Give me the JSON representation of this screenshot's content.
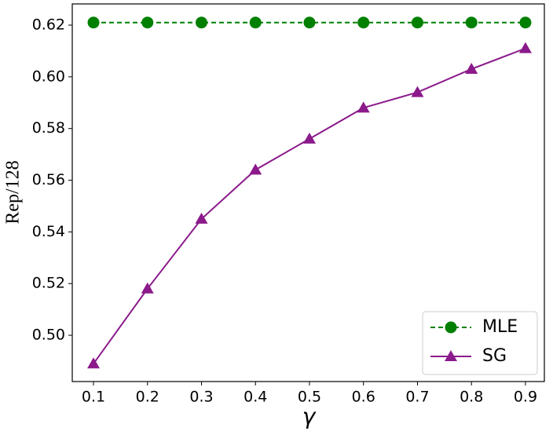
{
  "chart_data": {
    "type": "line",
    "x_label": "γ",
    "y_label": "Rep/128",
    "x": [
      0.1,
      0.2,
      0.3,
      0.4,
      0.5,
      0.6,
      0.7,
      0.8,
      0.9
    ],
    "series": [
      {
        "name": "MLE",
        "color": "#008000",
        "marker": "circle",
        "dash": true,
        "values": [
          0.621,
          0.621,
          0.621,
          0.621,
          0.621,
          0.621,
          0.621,
          0.621,
          0.621
        ]
      },
      {
        "name": "SG",
        "color": "#8b1a8b",
        "marker": "triangle",
        "dash": false,
        "values": [
          0.489,
          0.518,
          0.545,
          0.564,
          0.576,
          0.588,
          0.594,
          0.603,
          0.611
        ]
      }
    ],
    "xlim": [
      0.0607,
      0.935
    ],
    "xticks": [
      0.1,
      0.2,
      0.3,
      0.4,
      0.5,
      0.6,
      0.7,
      0.8,
      0.9
    ],
    "ylim": [
      0.4821,
      0.6282
    ],
    "yticks": [
      {
        "value": 0.5,
        "label": "0.50"
      },
      0.52,
      0.54,
      0.56,
      0.58,
      {
        "value": 0.6,
        "label": "0.60"
      },
      0.62
    ],
    "legend": "lower right",
    "grid": false
  }
}
